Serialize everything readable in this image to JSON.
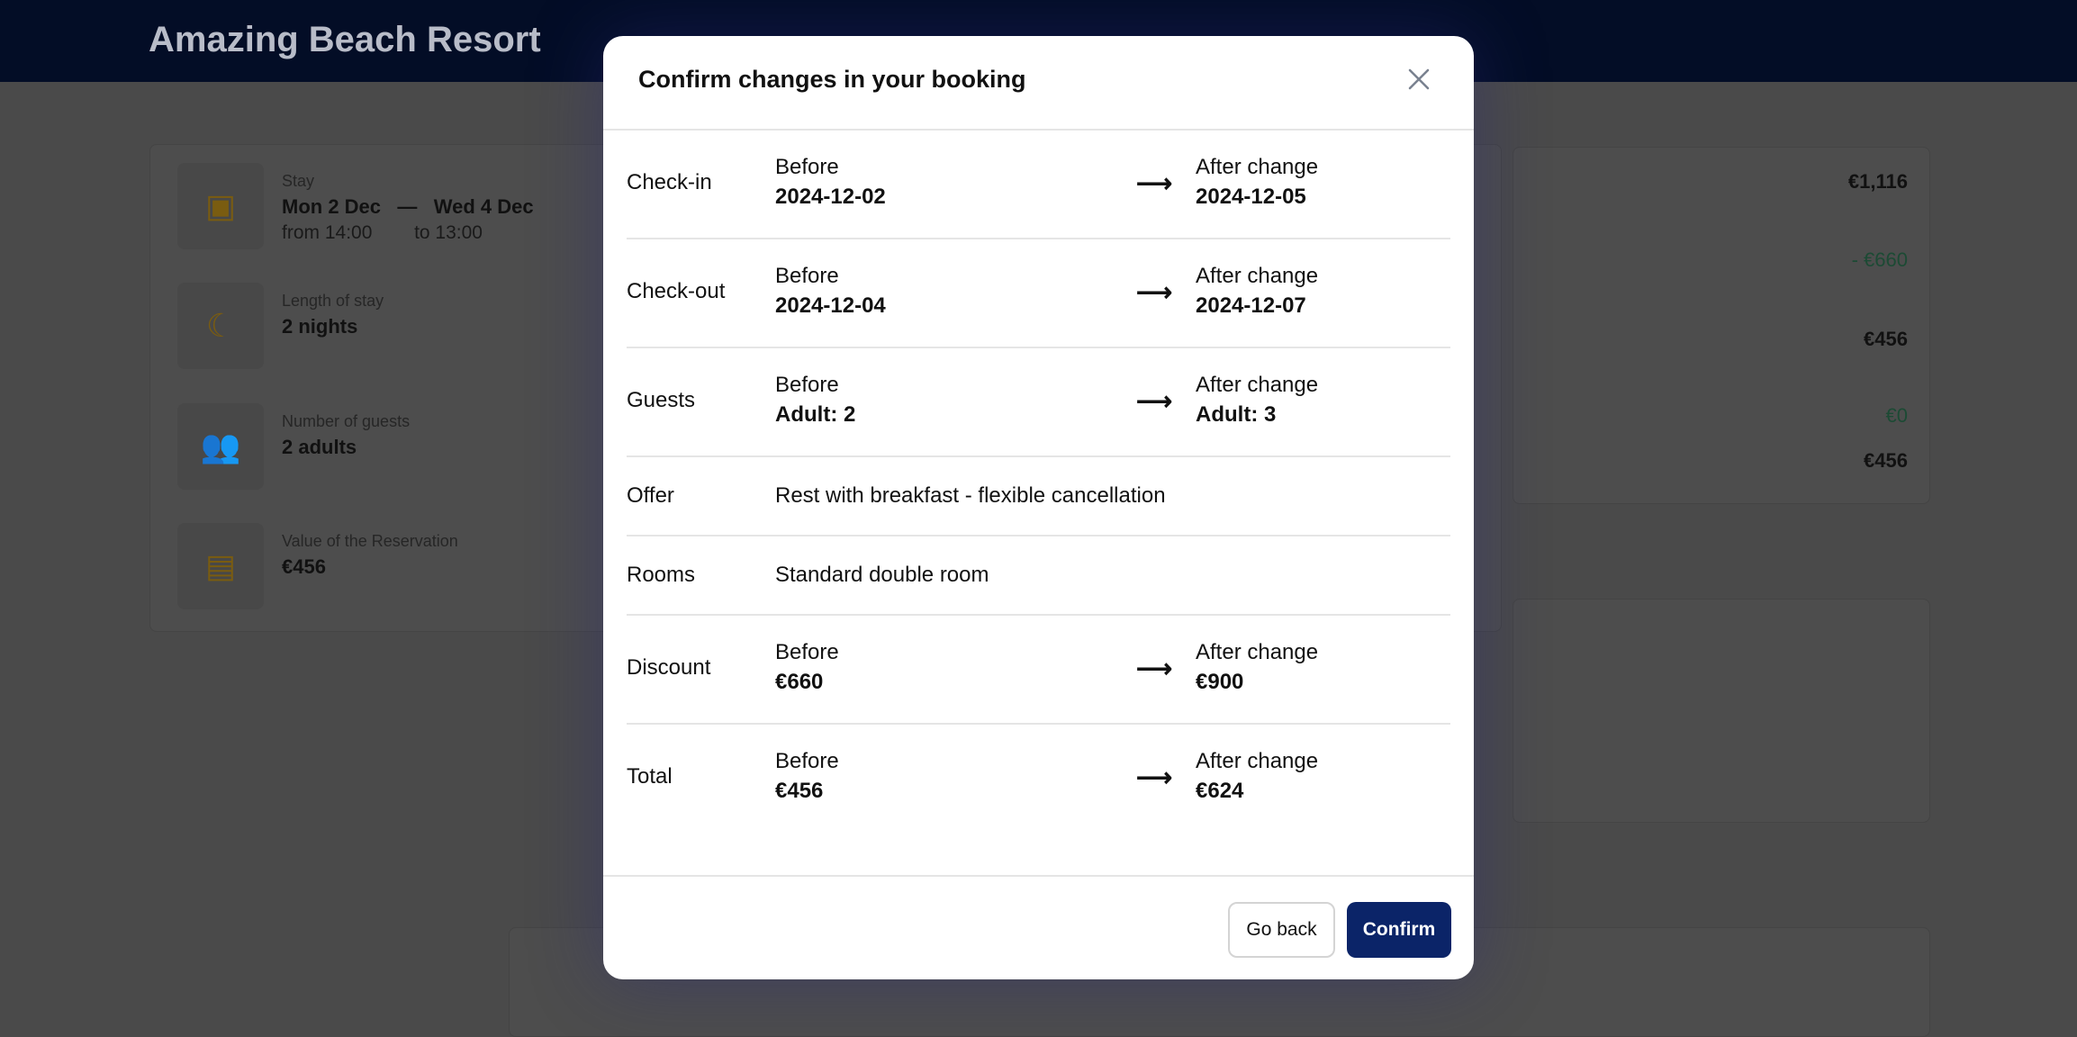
{
  "background": {
    "brand": "Amazing Beach Resort",
    "stay_label": "Stay",
    "stay_from": "Mon 2 Dec",
    "stay_dash": "—",
    "stay_to": "Wed 4 Dec",
    "stay_from_time": "from 14:00",
    "stay_to_time": "to 13:00",
    "length_label": "Length of stay",
    "length_value": "2 nights",
    "guests_label": "Number of guests",
    "guests_value": "2 adults",
    "value_label": "Value of the Reservation",
    "value_value": "€456",
    "summary": [
      "€1,116",
      "- €660",
      "€456",
      "€0",
      "€456"
    ]
  },
  "modal": {
    "title": "Confirm changes in your booking",
    "close_icon": "close-icon",
    "before_label": "Before",
    "after_label": "After change",
    "rows": [
      {
        "label": "Check-in",
        "before": "2024-12-02",
        "after": "2024-12-05"
      },
      {
        "label": "Check-out",
        "before": "2024-12-04",
        "after": "2024-12-07"
      },
      {
        "label": "Guests",
        "before": "Adult: 2",
        "after": "Adult: 3"
      },
      {
        "label": "Offer",
        "value": "Rest with breakfast - flexible cancellation"
      },
      {
        "label": "Rooms",
        "value": "Standard double room"
      },
      {
        "label": "Discount",
        "before": "€660",
        "after": "€900"
      },
      {
        "label": "Total",
        "before": "€456",
        "after": "€624"
      }
    ],
    "go_back": "Go back",
    "confirm": "Confirm"
  },
  "colors": {
    "primary": "#0b2468",
    "header": "#0b1f5e",
    "accent_icon": "#a07a10",
    "discount_green": "#1e7a4a"
  }
}
